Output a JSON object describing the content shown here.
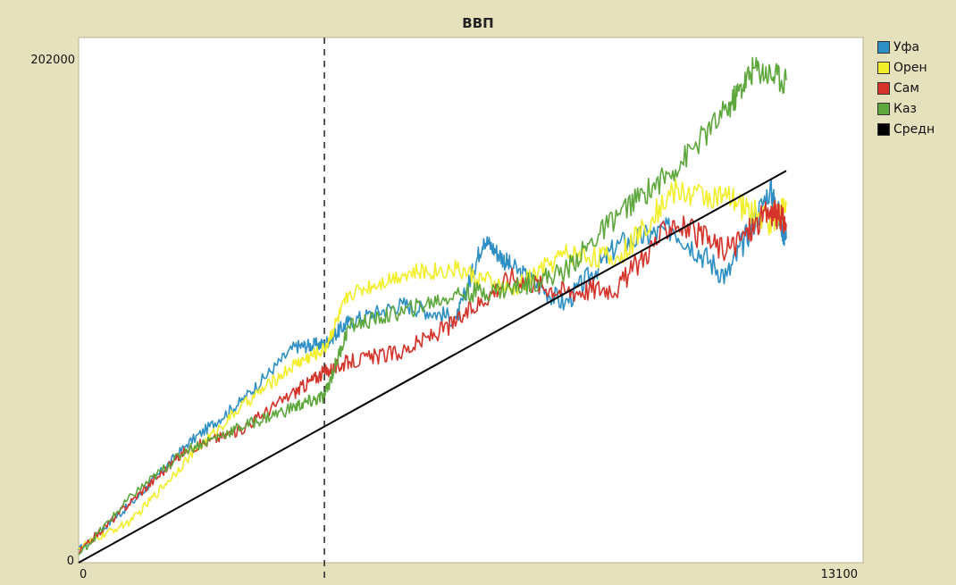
{
  "chart_data": {
    "type": "line",
    "title": "ВВП",
    "xlim": [
      0,
      13100
    ],
    "ylim": [
      0,
      202000
    ],
    "x_ticks": [
      "0",
      "13100"
    ],
    "y_ticks": [
      "0",
      "202000"
    ],
    "marker_line_x": 4550,
    "legend_position": "right",
    "grid": false,
    "series": [
      {
        "name": "Уфа",
        "color": "#2e8fc4",
        "x": [
          0,
          1000,
          2000,
          3000,
          4000,
          4550,
          5000,
          6000,
          7000,
          7500,
          8000,
          9000,
          10000,
          11000,
          12000,
          12800,
          13100
        ],
        "y": [
          5000,
          24000,
          47000,
          64000,
          86000,
          87000,
          96000,
          103000,
          97000,
          129000,
          118000,
          103000,
          127000,
          133000,
          114000,
          149000,
          129000
        ]
      },
      {
        "name": "Орен",
        "color": "#f2ef2a",
        "x": [
          0,
          1000,
          2000,
          3000,
          4000,
          4550,
          5000,
          6000,
          7000,
          8000,
          9000,
          10000,
          11000,
          12000,
          12800,
          13100
        ],
        "y": [
          6000,
          17000,
          41000,
          62000,
          79000,
          85000,
          107000,
          115000,
          117000,
          108000,
          123000,
          121000,
          148000,
          145000,
          136000,
          142000
        ]
      },
      {
        "name": "Сам",
        "color": "#d5342b",
        "x": [
          0,
          1000,
          2000,
          3000,
          4000,
          4550,
          5000,
          6000,
          7000,
          8000,
          9000,
          10000,
          11000,
          12000,
          12800,
          13100
        ],
        "y": [
          4000,
          25000,
          45000,
          53000,
          68000,
          76000,
          80000,
          84000,
          96000,
          114000,
          108000,
          110000,
          136000,
          124000,
          140000,
          135000
        ]
      },
      {
        "name": "Каз",
        "color": "#5ea73c",
        "x": [
          0,
          1000,
          2000,
          3000,
          4000,
          4550,
          5000,
          6000,
          7000,
          8000,
          9000,
          10000,
          11000,
          12000,
          12500,
          13100
        ],
        "y": [
          3000,
          27000,
          45000,
          54000,
          62000,
          66000,
          94000,
          100000,
          107000,
          109000,
          116000,
          139000,
          156000,
          180000,
          197000,
          192000
        ]
      },
      {
        "name": "Средн",
        "color": "#000000",
        "x": [
          0,
          13100
        ],
        "y": [
          0,
          156000
        ]
      }
    ]
  }
}
